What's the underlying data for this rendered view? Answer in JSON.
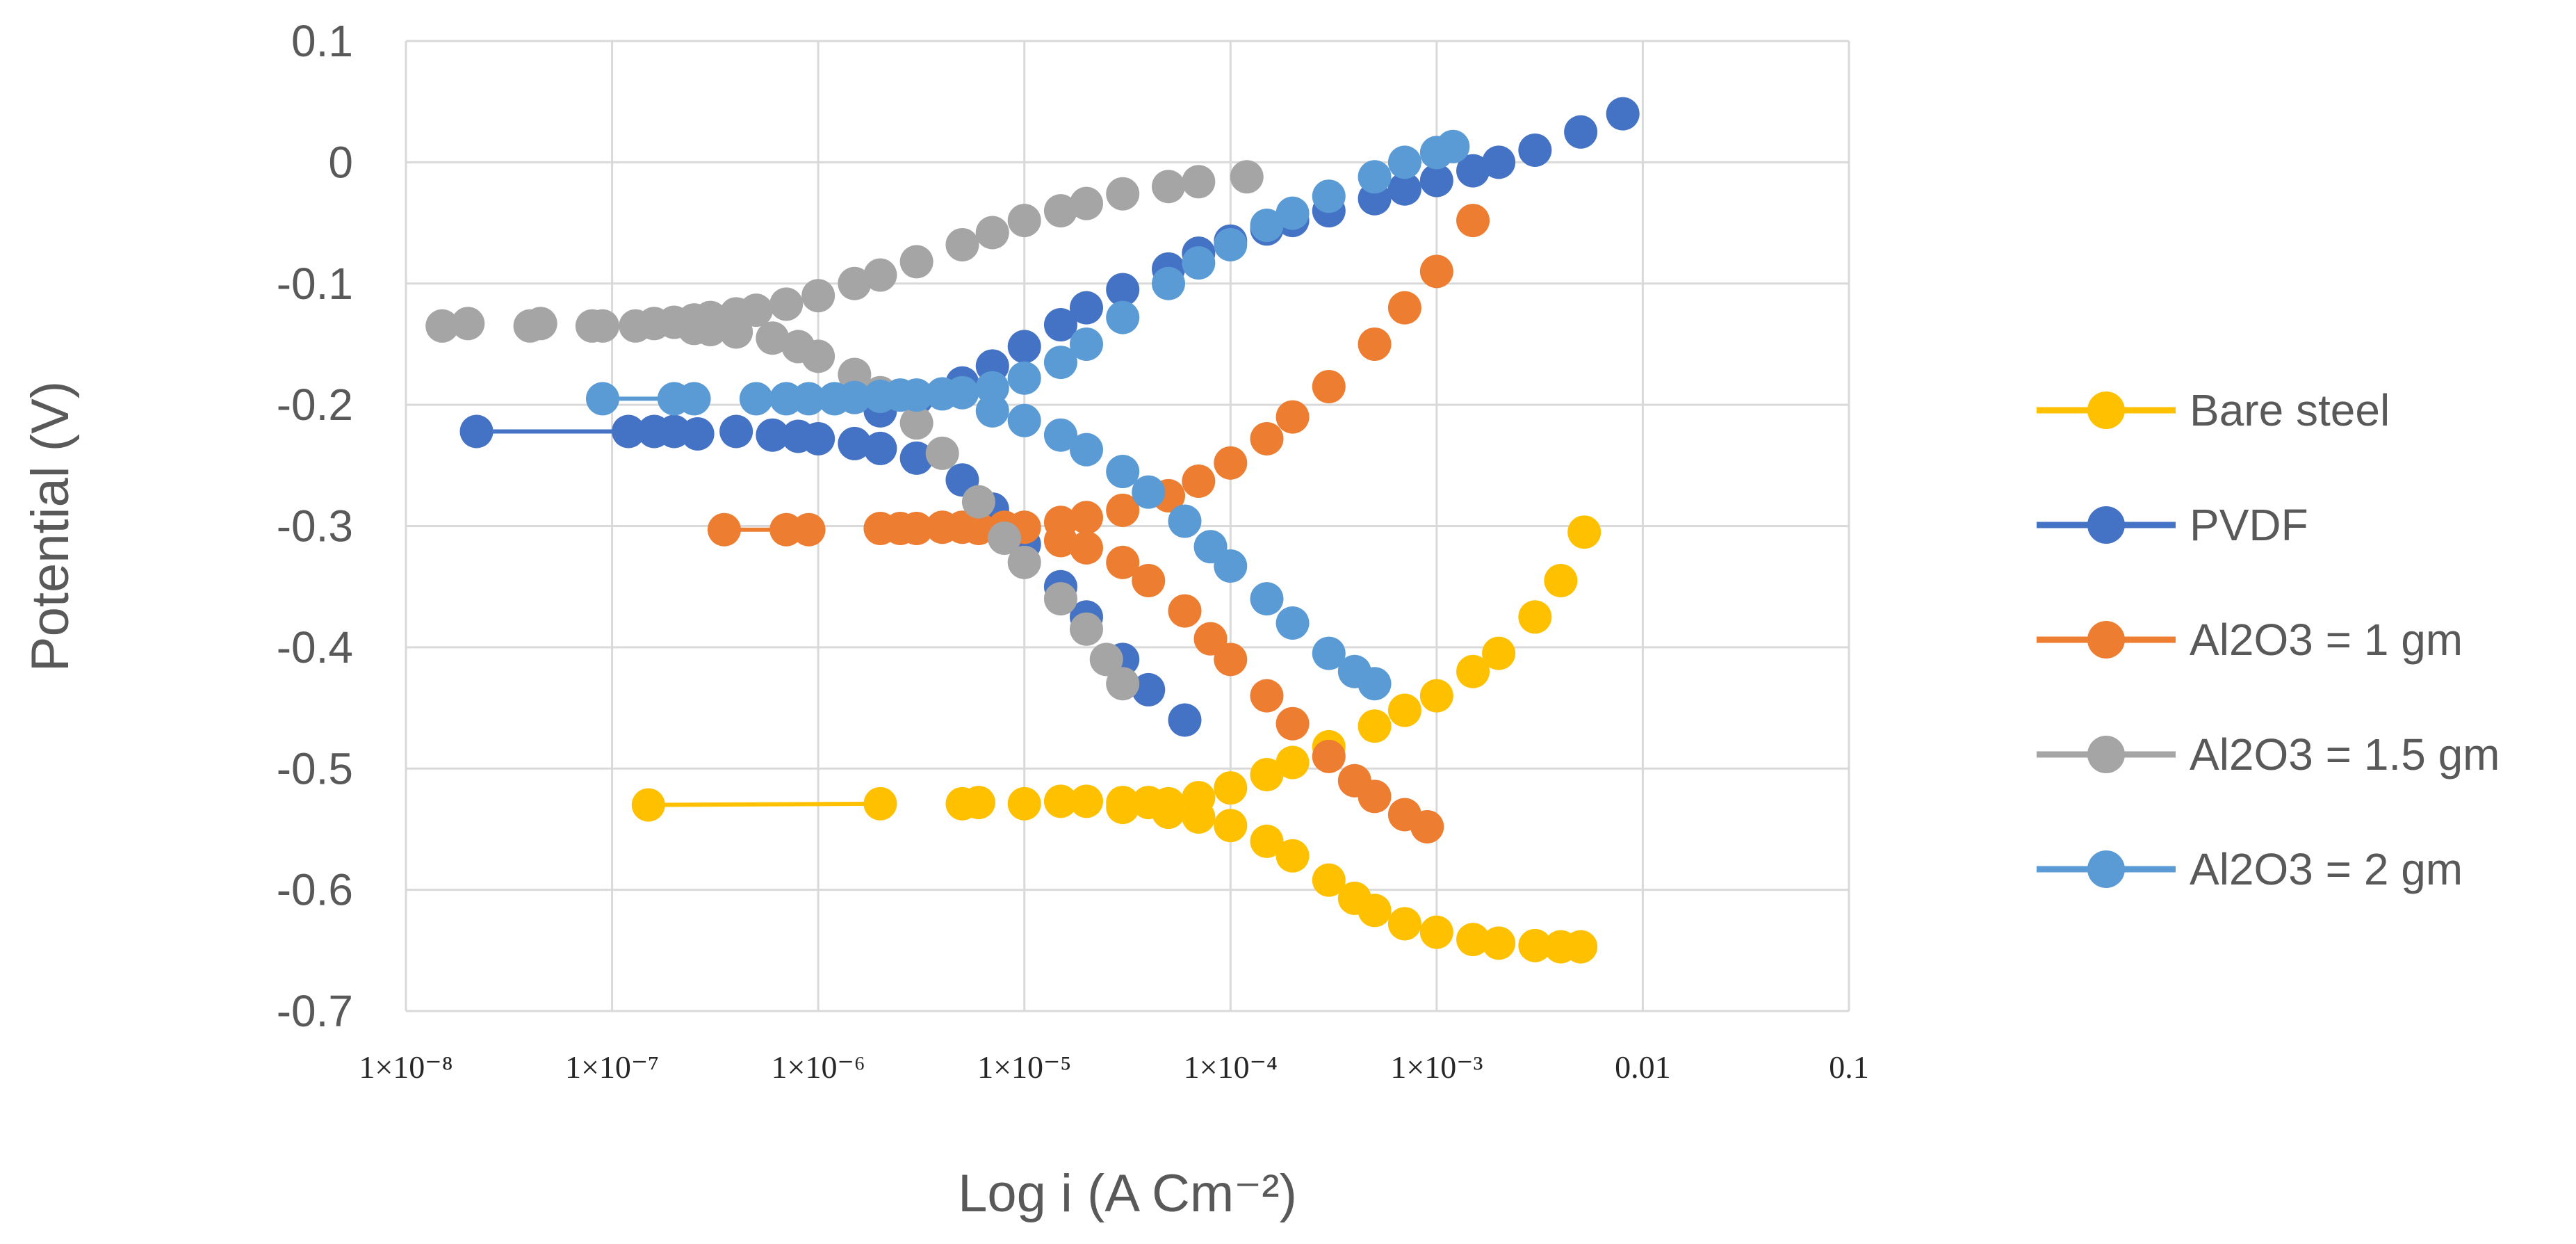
{
  "chart_data": {
    "type": "scatter",
    "title": "",
    "xlabel": "Log i (A Cm⁻²)",
    "ylabel": "Potential (V)",
    "xscale": "log10",
    "xlim": [
      1e-08,
      0.1
    ],
    "ylim": [
      -0.7,
      0.1
    ],
    "x_ticks": [
      {
        "value": 1e-08,
        "label": "1×10⁻⁸"
      },
      {
        "value": 1e-07,
        "label": "1×10⁻⁷"
      },
      {
        "value": 1e-06,
        "label": "1×10⁻⁶"
      },
      {
        "value": 1e-05,
        "label": "1×10⁻⁵"
      },
      {
        "value": 0.0001,
        "label": "1×10⁻⁴"
      },
      {
        "value": 0.001,
        "label": "1×10⁻³"
      },
      {
        "value": 0.01,
        "label": "0.01"
      },
      {
        "value": 0.1,
        "label": "0.1"
      }
    ],
    "y_ticks": [
      {
        "value": 0.1,
        "label": "0.1"
      },
      {
        "value": 0.0,
        "label": "0"
      },
      {
        "value": -0.1,
        "label": "-0.1"
      },
      {
        "value": -0.2,
        "label": "-0.2"
      },
      {
        "value": -0.3,
        "label": "-0.3"
      },
      {
        "value": -0.4,
        "label": "-0.4"
      },
      {
        "value": -0.5,
        "label": "-0.5"
      },
      {
        "value": -0.6,
        "label": "-0.6"
      },
      {
        "value": -0.7,
        "label": "-0.7"
      }
    ],
    "grid": true,
    "legend_position": "right",
    "series": [
      {
        "name": "Bare steel",
        "color": "#FFC000",
        "points": [
          [
            1.5e-07,
            -0.53
          ],
          [
            2e-06,
            -0.529
          ],
          [
            5e-06,
            -0.529
          ],
          [
            6e-06,
            -0.528
          ],
          [
            1e-05,
            -0.529
          ],
          [
            1.5e-05,
            -0.527
          ],
          [
            2e-05,
            -0.527
          ],
          [
            3e-05,
            -0.528
          ],
          [
            4e-05,
            -0.528
          ],
          [
            5e-05,
            -0.529
          ],
          [
            7e-05,
            -0.524
          ],
          [
            0.0001,
            -0.516
          ],
          [
            0.00015,
            -0.505
          ],
          [
            0.0002,
            -0.495
          ],
          [
            0.0003,
            -0.482
          ],
          [
            0.0005,
            -0.465
          ],
          [
            0.0007,
            -0.452
          ],
          [
            0.001,
            -0.44
          ],
          [
            0.0015,
            -0.42
          ],
          [
            0.002,
            -0.405
          ],
          [
            0.003,
            -0.375
          ],
          [
            0.004,
            -0.345
          ],
          [
            0.0052,
            -0.305
          ],
          [
            3e-05,
            -0.532
          ],
          [
            5e-05,
            -0.536
          ],
          [
            7e-05,
            -0.54
          ],
          [
            0.0001,
            -0.547
          ],
          [
            0.00015,
            -0.56
          ],
          [
            0.0002,
            -0.572
          ],
          [
            0.0003,
            -0.592
          ],
          [
            0.0004,
            -0.607
          ],
          [
            0.0005,
            -0.617
          ],
          [
            0.0007,
            -0.628
          ],
          [
            0.001,
            -0.635
          ],
          [
            0.0015,
            -0.641
          ],
          [
            0.002,
            -0.644
          ],
          [
            0.003,
            -0.646
          ],
          [
            0.004,
            -0.647
          ],
          [
            0.005,
            -0.647
          ]
        ]
      },
      {
        "name": "PVDF",
        "color": "#4472C4",
        "points": [
          [
            2.2e-08,
            -0.222
          ],
          [
            1.2e-07,
            -0.222
          ],
          [
            1.6e-07,
            -0.222
          ],
          [
            2e-07,
            -0.222
          ],
          [
            2.6e-07,
            -0.224
          ],
          [
            4e-07,
            -0.222
          ],
          [
            6e-07,
            -0.225
          ],
          [
            8e-07,
            -0.226
          ],
          [
            1e-06,
            -0.228
          ],
          [
            1.5e-06,
            -0.232
          ],
          [
            2e-06,
            -0.236
          ],
          [
            3e-06,
            -0.244
          ],
          [
            5e-06,
            -0.262
          ],
          [
            7e-06,
            -0.286
          ],
          [
            1e-05,
            -0.315
          ],
          [
            1.5e-05,
            -0.35
          ],
          [
            2e-05,
            -0.375
          ],
          [
            3e-05,
            -0.41
          ],
          [
            4e-05,
            -0.435
          ],
          [
            6e-05,
            -0.46
          ],
          [
            2e-06,
            -0.205
          ],
          [
            3e-06,
            -0.195
          ],
          [
            5e-06,
            -0.182
          ],
          [
            7e-06,
            -0.168
          ],
          [
            1e-05,
            -0.152
          ],
          [
            1.5e-05,
            -0.134
          ],
          [
            2e-05,
            -0.12
          ],
          [
            3e-05,
            -0.105
          ],
          [
            5e-05,
            -0.088
          ],
          [
            7e-05,
            -0.075
          ],
          [
            0.0001,
            -0.065
          ],
          [
            0.00015,
            -0.055
          ],
          [
            0.0002,
            -0.048
          ],
          [
            0.0003,
            -0.04
          ],
          [
            0.0005,
            -0.03
          ],
          [
            0.0007,
            -0.022
          ],
          [
            0.001,
            -0.015
          ],
          [
            0.0015,
            -0.007
          ],
          [
            0.002,
            0.0
          ],
          [
            0.003,
            0.01
          ],
          [
            0.005,
            0.025
          ],
          [
            0.008,
            0.04
          ]
        ]
      },
      {
        "name": "Al2O3 = 1 gm",
        "color": "#ED7D31",
        "points": [
          [
            3.5e-07,
            -0.303
          ],
          [
            7e-07,
            -0.303
          ],
          [
            9e-07,
            -0.303
          ],
          [
            2e-06,
            -0.302
          ],
          [
            2.5e-06,
            -0.302
          ],
          [
            3e-06,
            -0.302
          ],
          [
            4e-06,
            -0.301
          ],
          [
            5e-06,
            -0.301
          ],
          [
            6e-06,
            -0.302
          ],
          [
            8e-06,
            -0.301
          ],
          [
            1e-05,
            -0.301
          ],
          [
            1.5e-05,
            -0.297
          ],
          [
            2e-05,
            -0.293
          ],
          [
            3e-05,
            -0.287
          ],
          [
            5e-05,
            -0.275
          ],
          [
            7e-05,
            -0.263
          ],
          [
            0.0001,
            -0.248
          ],
          [
            0.00015,
            -0.228
          ],
          [
            0.0002,
            -0.21
          ],
          [
            0.0003,
            -0.185
          ],
          [
            0.0005,
            -0.15
          ],
          [
            0.0007,
            -0.12
          ],
          [
            0.001,
            -0.09
          ],
          [
            0.0015,
            -0.048
          ],
          [
            1.5e-05,
            -0.312
          ],
          [
            2e-05,
            -0.318
          ],
          [
            3e-05,
            -0.33
          ],
          [
            4e-05,
            -0.345
          ],
          [
            6e-05,
            -0.37
          ],
          [
            8e-05,
            -0.393
          ],
          [
            0.0001,
            -0.41
          ],
          [
            0.00015,
            -0.44
          ],
          [
            0.0002,
            -0.463
          ],
          [
            0.0003,
            -0.49
          ],
          [
            0.0004,
            -0.51
          ],
          [
            0.0005,
            -0.523
          ],
          [
            0.0007,
            -0.538
          ],
          [
            0.0009,
            -0.548
          ]
        ]
      },
      {
        "name": "Al2O3 = 1.5 gm",
        "color": "#A5A5A5",
        "points": [
          [
            1.5e-08,
            -0.135
          ],
          [
            2e-08,
            -0.133
          ],
          [
            4e-08,
            -0.135
          ],
          [
            4.5e-08,
            -0.133
          ],
          [
            8e-08,
            -0.135
          ],
          [
            9e-08,
            -0.135
          ],
          [
            1.3e-07,
            -0.135
          ],
          [
            1.6e-07,
            -0.133
          ],
          [
            2e-07,
            -0.132
          ],
          [
            2.5e-07,
            -0.13
          ],
          [
            3e-07,
            -0.128
          ],
          [
            4e-07,
            -0.125
          ],
          [
            5e-07,
            -0.122
          ],
          [
            7e-07,
            -0.117
          ],
          [
            1e-06,
            -0.11
          ],
          [
            1.5e-06,
            -0.1
          ],
          [
            2e-06,
            -0.093
          ],
          [
            3e-06,
            -0.082
          ],
          [
            5e-06,
            -0.068
          ],
          [
            7e-06,
            -0.058
          ],
          [
            1e-05,
            -0.048
          ],
          [
            1.5e-05,
            -0.04
          ],
          [
            2e-05,
            -0.034
          ],
          [
            3e-05,
            -0.026
          ],
          [
            5e-05,
            -0.02
          ],
          [
            7e-05,
            -0.016
          ],
          [
            0.00012,
            -0.012
          ],
          [
            2.5e-07,
            -0.137
          ],
          [
            3e-07,
            -0.138
          ],
          [
            4e-07,
            -0.14
          ],
          [
            6e-07,
            -0.145
          ],
          [
            8e-07,
            -0.152
          ],
          [
            1e-06,
            -0.16
          ],
          [
            1.5e-06,
            -0.175
          ],
          [
            2e-06,
            -0.19
          ],
          [
            3e-06,
            -0.215
          ],
          [
            4e-06,
            -0.24
          ],
          [
            6e-06,
            -0.28
          ],
          [
            8e-06,
            -0.31
          ],
          [
            1e-05,
            -0.33
          ],
          [
            1.5e-05,
            -0.36
          ],
          [
            2e-05,
            -0.385
          ],
          [
            2.5e-05,
            -0.41
          ],
          [
            3e-05,
            -0.43
          ]
        ]
      },
      {
        "name": "Al2O3 = 2 gm",
        "color": "#5B9BD5",
        "points": [
          [
            9e-08,
            -0.195
          ],
          [
            2e-07,
            -0.195
          ],
          [
            2.5e-07,
            -0.195
          ],
          [
            5e-07,
            -0.195
          ],
          [
            7e-07,
            -0.195
          ],
          [
            9e-07,
            -0.195
          ],
          [
            1.2e-06,
            -0.195
          ],
          [
            1.5e-06,
            -0.194
          ],
          [
            2e-06,
            -0.193
          ],
          [
            2.5e-06,
            -0.192
          ],
          [
            3e-06,
            -0.192
          ],
          [
            4e-06,
            -0.191
          ],
          [
            5e-06,
            -0.19
          ],
          [
            7e-06,
            -0.186
          ],
          [
            1e-05,
            -0.178
          ],
          [
            1.5e-05,
            -0.165
          ],
          [
            2e-05,
            -0.15
          ],
          [
            3e-05,
            -0.128
          ],
          [
            5e-05,
            -0.1
          ],
          [
            7e-05,
            -0.083
          ],
          [
            0.0001,
            -0.068
          ],
          [
            0.00015,
            -0.052
          ],
          [
            0.0002,
            -0.042
          ],
          [
            0.0003,
            -0.028
          ],
          [
            0.0005,
            -0.012
          ],
          [
            0.0007,
            0.0
          ],
          [
            0.001,
            0.008
          ],
          [
            0.0012,
            0.013
          ],
          [
            7e-06,
            -0.205
          ],
          [
            1e-05,
            -0.213
          ],
          [
            1.5e-05,
            -0.225
          ],
          [
            2e-05,
            -0.237
          ],
          [
            3e-05,
            -0.255
          ],
          [
            4e-05,
            -0.272
          ],
          [
            6e-05,
            -0.296
          ],
          [
            8e-05,
            -0.317
          ],
          [
            0.0001,
            -0.333
          ],
          [
            0.00015,
            -0.36
          ],
          [
            0.0002,
            -0.38
          ],
          [
            0.0003,
            -0.405
          ],
          [
            0.0004,
            -0.42
          ],
          [
            0.0005,
            -0.43
          ]
        ]
      }
    ]
  }
}
